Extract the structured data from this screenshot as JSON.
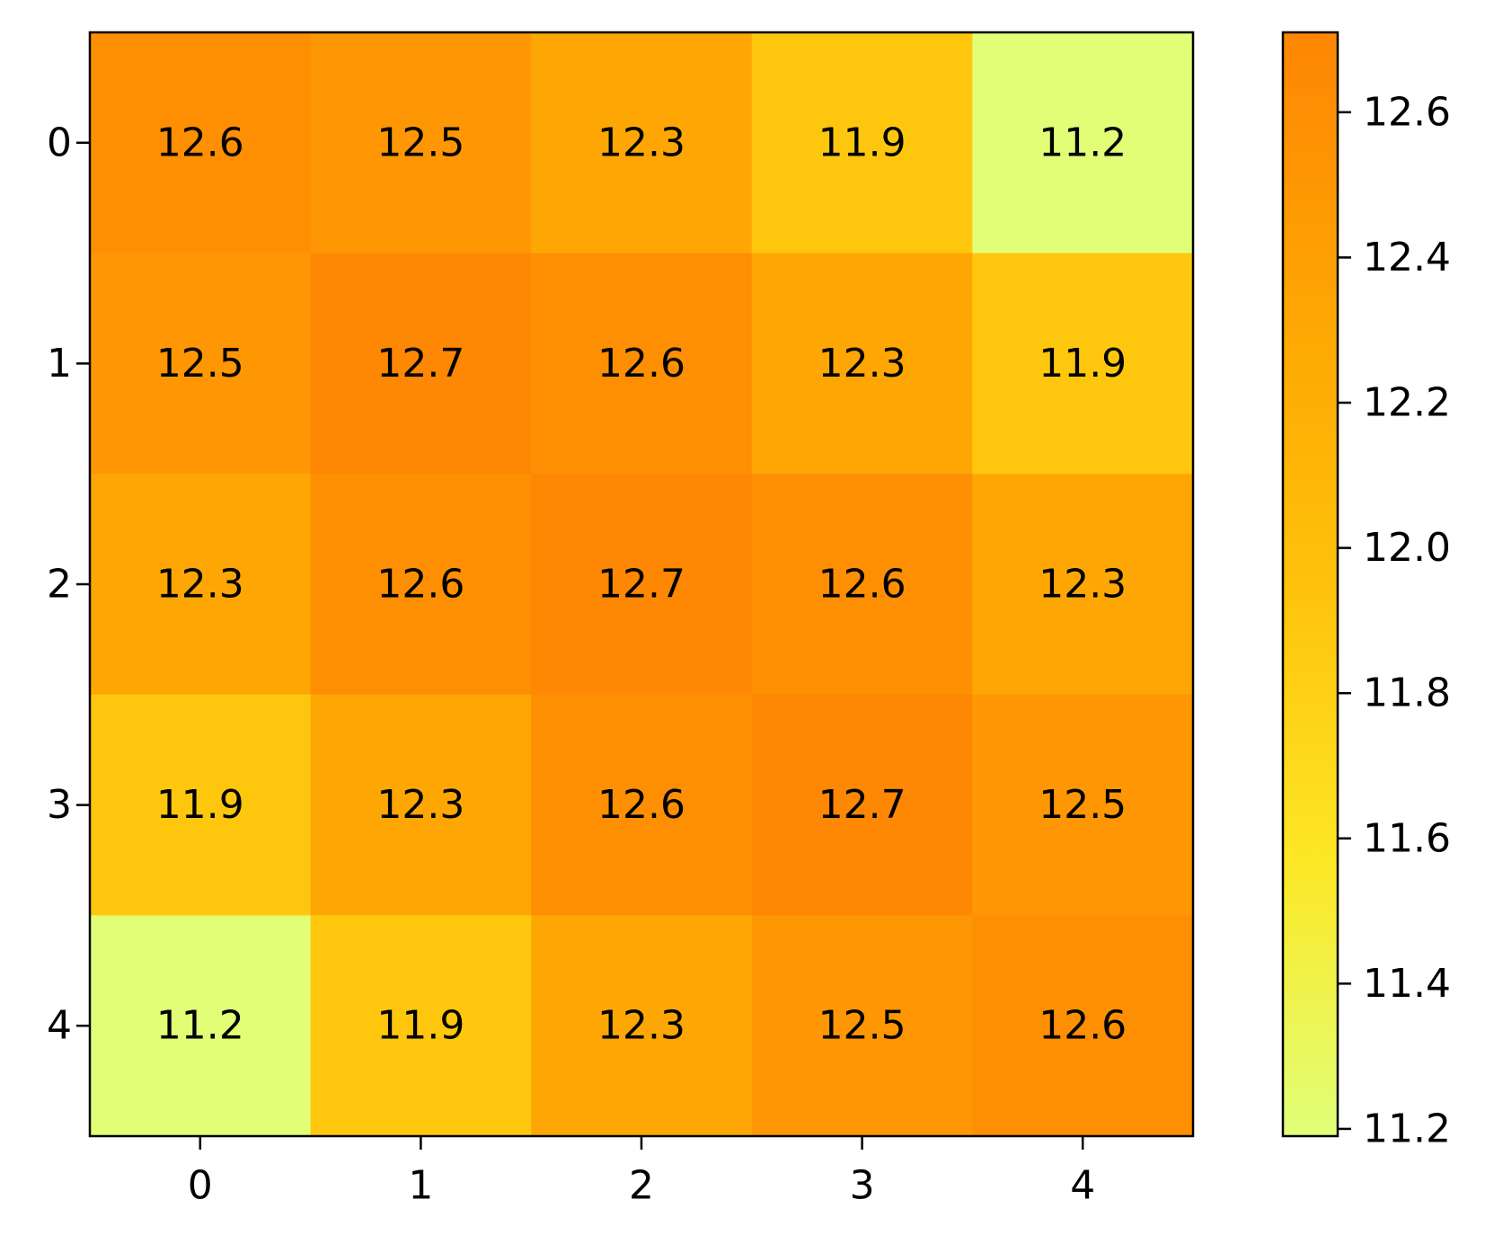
{
  "chart_data": {
    "type": "heatmap",
    "title": "",
    "xlabel": "",
    "ylabel": "",
    "x_categories": [
      "0",
      "1",
      "2",
      "3",
      "4"
    ],
    "y_categories": [
      "0",
      "1",
      "2",
      "3",
      "4"
    ],
    "values": [
      [
        12.6,
        12.5,
        12.3,
        11.9,
        11.2
      ],
      [
        12.5,
        12.7,
        12.6,
        12.3,
        11.9
      ],
      [
        12.3,
        12.6,
        12.7,
        12.6,
        12.3
      ],
      [
        11.9,
        12.3,
        12.6,
        12.7,
        12.5
      ],
      [
        11.2,
        11.9,
        12.3,
        12.5,
        12.6
      ]
    ],
    "cell_labels": [
      [
        "12.6",
        "12.5",
        "12.3",
        "11.9",
        "11.2"
      ],
      [
        "12.5",
        "12.7",
        "12.6",
        "12.3",
        "11.9"
      ],
      [
        "12.3",
        "12.6",
        "12.7",
        "12.6",
        "12.3"
      ],
      [
        "11.9",
        "12.3",
        "12.6",
        "12.7",
        "12.5"
      ],
      [
        "11.2",
        "11.9",
        "12.3",
        "12.5",
        "12.6"
      ]
    ],
    "colorbar": {
      "range": [
        11.19,
        12.71
      ],
      "ticks": [
        11.2,
        11.4,
        11.6,
        11.8,
        12.0,
        12.2,
        12.4,
        12.6
      ],
      "tick_labels": [
        "11.2",
        "11.4",
        "11.6",
        "11.8",
        "12.0",
        "12.2",
        "12.4",
        "12.6"
      ],
      "position": "right",
      "colormap": [
        "#e0ff78",
        "#fde725",
        "#fec20a",
        "#fea503",
        "#fe8603"
      ]
    },
    "grid": false
  }
}
